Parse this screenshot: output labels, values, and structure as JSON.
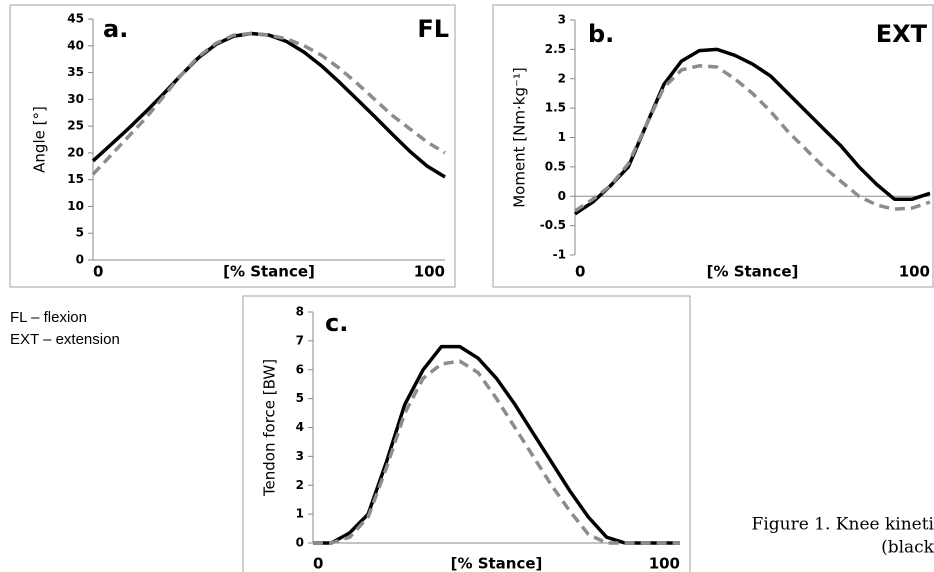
{
  "chart_data": [
    {
      "type": "line",
      "title": "a.",
      "annotation": "FL",
      "xlabel": "[% Stance]",
      "ylabel": "Angle [°]",
      "x": [
        0,
        5,
        10,
        15,
        20,
        25,
        30,
        35,
        40,
        45,
        50,
        55,
        60,
        65,
        70,
        75,
        80,
        85,
        90,
        95,
        100
      ],
      "xlim": [
        0,
        100
      ],
      "xticks": [
        0,
        100
      ],
      "ylim": [
        0,
        45
      ],
      "yticks": [
        0,
        5,
        10,
        15,
        20,
        25,
        30,
        35,
        40,
        45
      ],
      "grid": false,
      "series": [
        {
          "color": "#000000",
          "dashed": false,
          "values": [
            18.5,
            21.5,
            24.5,
            27.7,
            31,
            34.5,
            37.8,
            40.3,
            41.8,
            42.3,
            42,
            40.8,
            38.8,
            36.2,
            33.2,
            30,
            26.8,
            23.5,
            20.3,
            17.5,
            15.5
          ]
        },
        {
          "color": "#8c8c8c",
          "dashed": true,
          "values": [
            16,
            19.5,
            23,
            26.5,
            30.5,
            34.5,
            38,
            40.5,
            42,
            42.3,
            42,
            41.3,
            40,
            38.2,
            35.8,
            33,
            30,
            27,
            24.5,
            22,
            20
          ]
        }
      ]
    },
    {
      "type": "line",
      "title": "b.",
      "annotation": "EXT",
      "xlabel": "[% Stance]",
      "ylabel": "Moment [Nm·kg⁻¹]",
      "x": [
        0,
        5,
        10,
        15,
        20,
        25,
        30,
        35,
        40,
        45,
        50,
        55,
        60,
        65,
        70,
        75,
        80,
        85,
        90,
        95,
        100
      ],
      "xlim": [
        0,
        100
      ],
      "xticks": [
        0,
        100
      ],
      "ylim": [
        -1,
        3
      ],
      "yticks": [
        -1,
        -0.5,
        0,
        0.5,
        1,
        1.5,
        2,
        2.5,
        3
      ],
      "grid": false,
      "series": [
        {
          "color": "#000000",
          "dashed": false,
          "values": [
            -0.3,
            -0.1,
            0.18,
            0.5,
            1.2,
            1.9,
            2.3,
            2.48,
            2.5,
            2.4,
            2.25,
            2.05,
            1.75,
            1.45,
            1.15,
            0.85,
            0.5,
            0.2,
            -0.05,
            -0.05,
            0.05
          ]
        },
        {
          "color": "#8c8c8c",
          "dashed": true,
          "values": [
            -0.25,
            -0.05,
            0.18,
            0.55,
            1.2,
            1.85,
            2.15,
            2.22,
            2.2,
            2.0,
            1.75,
            1.45,
            1.1,
            0.8,
            0.5,
            0.25,
            0.0,
            -0.15,
            -0.22,
            -0.2,
            -0.1
          ]
        }
      ]
    },
    {
      "type": "line",
      "title": "c.",
      "xlabel": "[% Stance]",
      "ylabel": "Tendon force [BW]",
      "x": [
        0,
        5,
        10,
        15,
        20,
        25,
        30,
        35,
        40,
        45,
        50,
        55,
        60,
        65,
        70,
        75,
        80,
        85,
        90,
        95,
        100
      ],
      "xlim": [
        0,
        100
      ],
      "xticks": [
        0,
        100
      ],
      "ylim": [
        0,
        8
      ],
      "yticks": [
        0,
        1,
        2,
        3,
        4,
        5,
        6,
        7,
        8
      ],
      "grid": false,
      "series": [
        {
          "color": "#000000",
          "dashed": false,
          "values": [
            0,
            0,
            0.35,
            1.0,
            2.8,
            4.8,
            6.0,
            6.8,
            6.8,
            6.4,
            5.7,
            4.8,
            3.8,
            2.8,
            1.8,
            0.9,
            0.2,
            0,
            0,
            0,
            0
          ]
        },
        {
          "color": "#8c8c8c",
          "dashed": true,
          "values": [
            0,
            0,
            0.2,
            0.9,
            2.6,
            4.5,
            5.7,
            6.2,
            6.3,
            5.9,
            5.0,
            4.0,
            3.0,
            2.0,
            1.1,
            0.3,
            0,
            0,
            0,
            0,
            0
          ]
        }
      ]
    }
  ],
  "notes": [
    "FL – flexion",
    "EXT – extension"
  ],
  "caption": [
    "Figure 1. Knee kineti",
    "(black"
  ]
}
